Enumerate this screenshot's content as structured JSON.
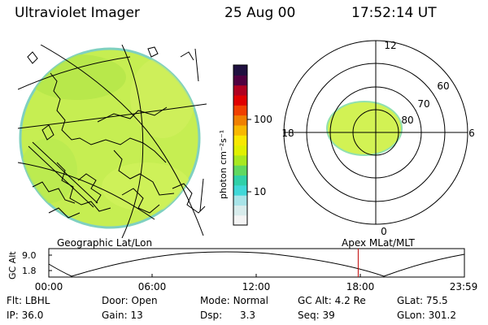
{
  "header": {
    "title": "Ultraviolet Imager",
    "date": "25 Aug 00",
    "time": "17:52:14 UT"
  },
  "geo_panel": {
    "label": "Geographic Lat/Lon"
  },
  "colorbar": {
    "unit_label": "photon cm⁻²s⁻¹",
    "ticks": [
      "100",
      "10"
    ],
    "colors": [
      "#f4f4f4",
      "#d8ecec",
      "#a8e4e8",
      "#40d8d8",
      "#30d0a8",
      "#60d860",
      "#a8e820",
      "#e0f000",
      "#f8e800",
      "#f8b800",
      "#f08000",
      "#f04000",
      "#e00000",
      "#b00020",
      "#500040",
      "#201040"
    ]
  },
  "polar_panel": {
    "label": "Apex MLat/MLT",
    "mlt_labels": [
      "12",
      "18",
      "6",
      "0"
    ],
    "lat_labels": [
      "60",
      "70",
      "80"
    ]
  },
  "gc_alt_plot": {
    "y_title": "GC Alt",
    "y_ticks": [
      "9.0",
      "1.8"
    ],
    "x_ticks": [
      "00:00",
      "06:00",
      "12:00",
      "18:00",
      "23:59"
    ],
    "marker_time": "17:52",
    "marker_color": "#c00000"
  },
  "footer": {
    "rows": [
      [
        {
          "key": "Flt:",
          "value": "LBHL"
        },
        {
          "key": "Door:",
          "value": "Open"
        },
        {
          "key": "Mode:",
          "value": "Normal"
        },
        {
          "key": "GC Alt:",
          "value": "4.2 Re"
        },
        {
          "key": "GLat:",
          "value": "75.5"
        }
      ],
      [
        {
          "key": "IP:",
          "value": "36.0"
        },
        {
          "key": "Gain:",
          "value": "13"
        },
        {
          "key": "Dsp:",
          "value": "3.3"
        },
        {
          "key": "Seq:",
          "value": "39"
        },
        {
          "key": "GLon:",
          "value": "301.2"
        }
      ]
    ]
  }
}
